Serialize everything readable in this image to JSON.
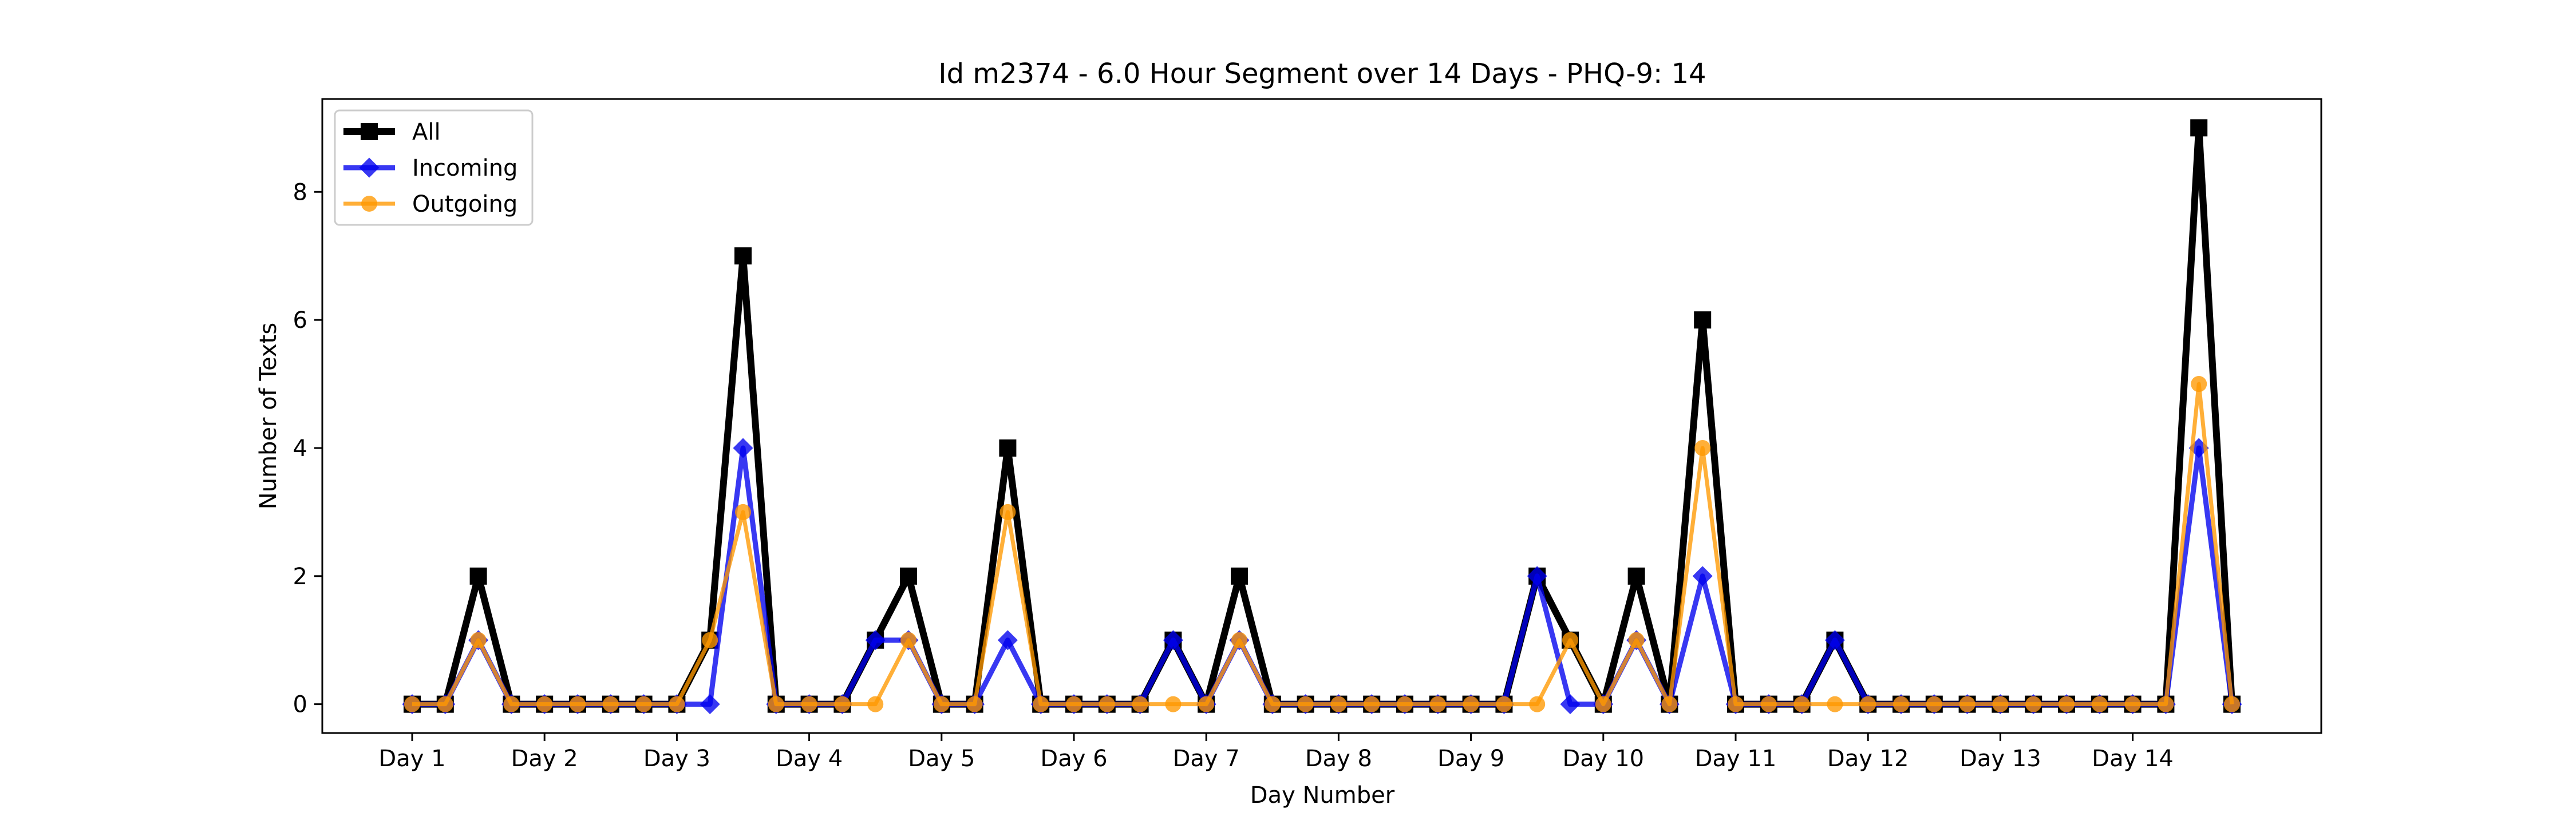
{
  "chart_data": {
    "type": "line",
    "title": "Id m2374 - 6.0 Hour Segment over 14 Days - PHQ-9: 14",
    "xlabel": "Day Number",
    "ylabel": "Number of Texts",
    "x_tick_labels": [
      "Day 1",
      "Day 2",
      "Day 3",
      "Day 4",
      "Day 5",
      "Day 6",
      "Day 7",
      "Day 8",
      "Day 9",
      "Day 10",
      "Day 11",
      "Day 12",
      "Day 13",
      "Day 14"
    ],
    "y_ticks": [
      0,
      2,
      4,
      6,
      8
    ],
    "ylim": [
      -0.45,
      9.45
    ],
    "grid": false,
    "legend_position": "top-left",
    "series": [
      {
        "name": "All",
        "color": "#000000",
        "marker": "square",
        "values": [
          0,
          0,
          2,
          0,
          0,
          0,
          0,
          0,
          0,
          1,
          7,
          0,
          0,
          0,
          1,
          2,
          0,
          0,
          4,
          0,
          0,
          0,
          0,
          1,
          0,
          2,
          0,
          0,
          0,
          0,
          0,
          0,
          0,
          0,
          2,
          1,
          0,
          2,
          0,
          6,
          0,
          0,
          0,
          1,
          0,
          0,
          0,
          0,
          0,
          0,
          0,
          0,
          0,
          0,
          9,
          0
        ]
      },
      {
        "name": "Incoming",
        "color": "#0000ee",
        "marker": "diamond",
        "values": [
          0,
          0,
          1,
          0,
          0,
          0,
          0,
          0,
          0,
          0,
          4,
          0,
          0,
          0,
          1,
          1,
          0,
          0,
          1,
          0,
          0,
          0,
          0,
          1,
          0,
          1,
          0,
          0,
          0,
          0,
          0,
          0,
          0,
          0,
          2,
          0,
          0,
          1,
          0,
          2,
          0,
          0,
          0,
          1,
          0,
          0,
          0,
          0,
          0,
          0,
          0,
          0,
          0,
          0,
          4,
          0
        ]
      },
      {
        "name": "Outgoing",
        "color": "#ff9900",
        "marker": "circle",
        "values": [
          0,
          0,
          1,
          0,
          0,
          0,
          0,
          0,
          0,
          1,
          3,
          0,
          0,
          0,
          0,
          1,
          0,
          0,
          3,
          0,
          0,
          0,
          0,
          0,
          0,
          1,
          0,
          0,
          0,
          0,
          0,
          0,
          0,
          0,
          0,
          1,
          0,
          1,
          0,
          4,
          0,
          0,
          0,
          0,
          0,
          0,
          0,
          0,
          0,
          0,
          0,
          0,
          0,
          0,
          5,
          0
        ]
      }
    ]
  }
}
